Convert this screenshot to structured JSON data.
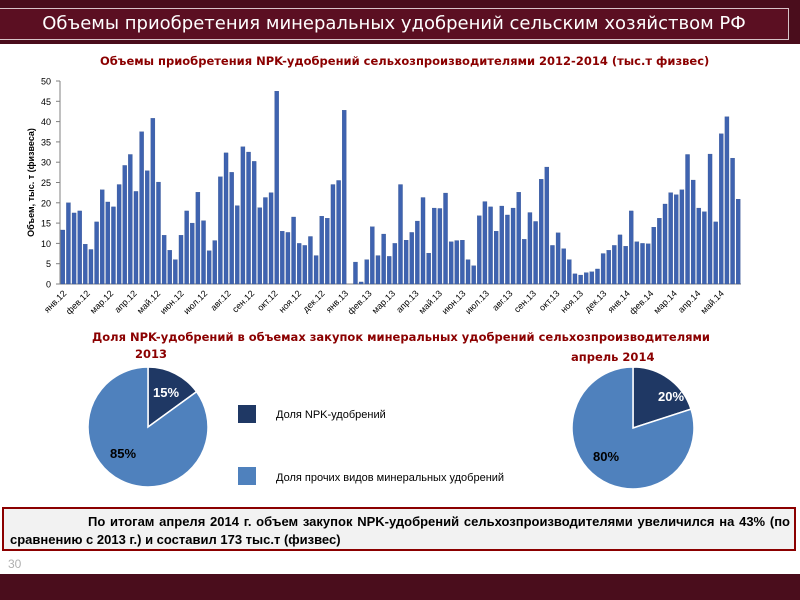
{
  "header": {
    "title": "Объемы приобретения минеральных удобрений сельским хозяйством РФ"
  },
  "bar_chart_title": "Объемы приобретения NPK-удобрений сельхозпроизводителями 2012-2014  (тыс.т физвес)",
  "pie_section": {
    "title_line1": "Доля  NPK-удобрений в объемах закупок минеральных удобрений  сельхозпроизводителями",
    "title_2013": "2013",
    "title_2014": "апрель 2014"
  },
  "legend": {
    "npk": "Доля NPK-удобрений",
    "other": "Доля прочих видов минеральных удобрений"
  },
  "colors": {
    "bar": "#3f63b0",
    "npk": "#1f3864",
    "other": "#4f81bd"
  },
  "summary": "По итогам апреля 2014 г. объем закупок NPK-удобрений сельхозпроизводителями увеличился на 43% (по сравнению с 2013 г.) и составил 173 тыс.т (физвес)",
  "page_number": "30",
  "chart_data": [
    {
      "type": "bar",
      "title": "Объемы приобретения NPK-удобрений сельхозпроизводителями 2012-2014  (тыс.т физвес)",
      "ylabel": "Объем, тыс. т (физвеса)",
      "ylim": [
        0,
        50
      ],
      "yticks": [
        0,
        5,
        10,
        15,
        20,
        25,
        30,
        35,
        40,
        45,
        50
      ],
      "grid": false,
      "x_tick_labels": [
        "янв.12",
        "фев.12",
        "мар.12",
        "апр.12",
        "май.12",
        "июн.12",
        "июл.12",
        "авг.12",
        "сен.12",
        "окт.12",
        "ноя.12",
        "дек.12",
        "янв.13",
        "фев.13",
        "мар.13",
        "апр.13",
        "май.13",
        "июн.13",
        "июл.13",
        "авг.13",
        "сен.13",
        "окт.13",
        "ноя.13",
        "дек.13",
        "янв.14",
        "фев.14",
        "мар.14",
        "апр.14",
        "май.14"
      ],
      "values": [
        13.3,
        20,
        17.5,
        18,
        9.8,
        8.5,
        15.3,
        23.2,
        20.2,
        19,
        24.5,
        29.2,
        31.9,
        22.8,
        37.5,
        27.9,
        40.8,
        25.1,
        12,
        8.3,
        6,
        12,
        18,
        15,
        22.6,
        15.6,
        8.2,
        10.7,
        26.4,
        32.3,
        27.5,
        19.3,
        33.8,
        32.5,
        30.2,
        18.8,
        21.3,
        22.5,
        47.5,
        13,
        12.7,
        16.5,
        10,
        9.5,
        11.7,
        7,
        16.7,
        16.2,
        24.5,
        25.5,
        42.8,
        0,
        5.4,
        0.5,
        6,
        14.1,
        7,
        12.3,
        6.8,
        10,
        24.5,
        10.8,
        12.7,
        15.5,
        21.3,
        7.6,
        18.7,
        18.6,
        22.4,
        10.4,
        10.7,
        10.8,
        6,
        4.5,
        16.8,
        20.3,
        19,
        13,
        19.2,
        17,
        18.7,
        22.6,
        11,
        17.6,
        15.4,
        25.8,
        28.8,
        9.5,
        12.6,
        8.7,
        6,
        2.5,
        2.2,
        2.8,
        3,
        3.7,
        7.5,
        8.3,
        9.5,
        12.1,
        9.3,
        18,
        10.4,
        10,
        9.9,
        14,
        16.2,
        19.7,
        22.5,
        22,
        23.2,
        31.9,
        25.6,
        18.7,
        17.8,
        32,
        15.3,
        37,
        41.2,
        31,
        20.9
      ]
    },
    {
      "type": "pie",
      "title": "2013",
      "labels": [
        "Доля NPK-удобрений",
        "Доля прочих видов минеральных удобрений"
      ],
      "values": [
        15,
        85
      ],
      "data_labels": [
        "15%",
        "85%"
      ]
    },
    {
      "type": "pie",
      "title": "апрель 2014",
      "labels": [
        "Доля NPK-удобрений",
        "Доля прочих видов минеральных удобрений"
      ],
      "values": [
        20,
        80
      ],
      "data_labels": [
        "20%",
        "80%"
      ]
    }
  ]
}
